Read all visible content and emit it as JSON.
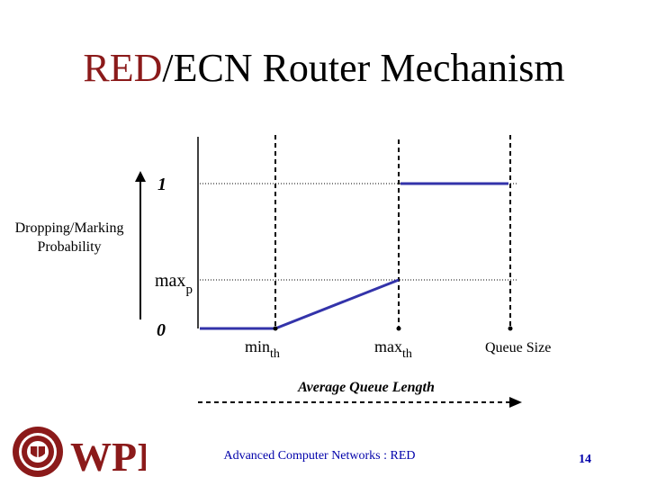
{
  "slide": {
    "title_red": "RED",
    "title_rest": "/ECN Router Mechanism",
    "footer": "Advanced Computer Networks : RED",
    "page_number": "14"
  },
  "diagram": {
    "y_axis_label_line1": "Dropping/Marking",
    "y_axis_label_line2": "Probability",
    "y_tick_one": "1",
    "y_tick_maxp": "max",
    "y_tick_maxp_sub": "p",
    "y_tick_zero": "0",
    "x_label_minth": "min",
    "x_label_minth_sub": "th",
    "x_label_maxth": "max",
    "x_label_maxth_sub": "th",
    "x_label_queue_size": "Queue Size",
    "x_axis_title": "Average Queue Length",
    "line_color": "#3333aa"
  },
  "logo": {
    "text": "WPI",
    "color": "#8b1a1a",
    "icon": "wpi-seal-icon"
  }
}
